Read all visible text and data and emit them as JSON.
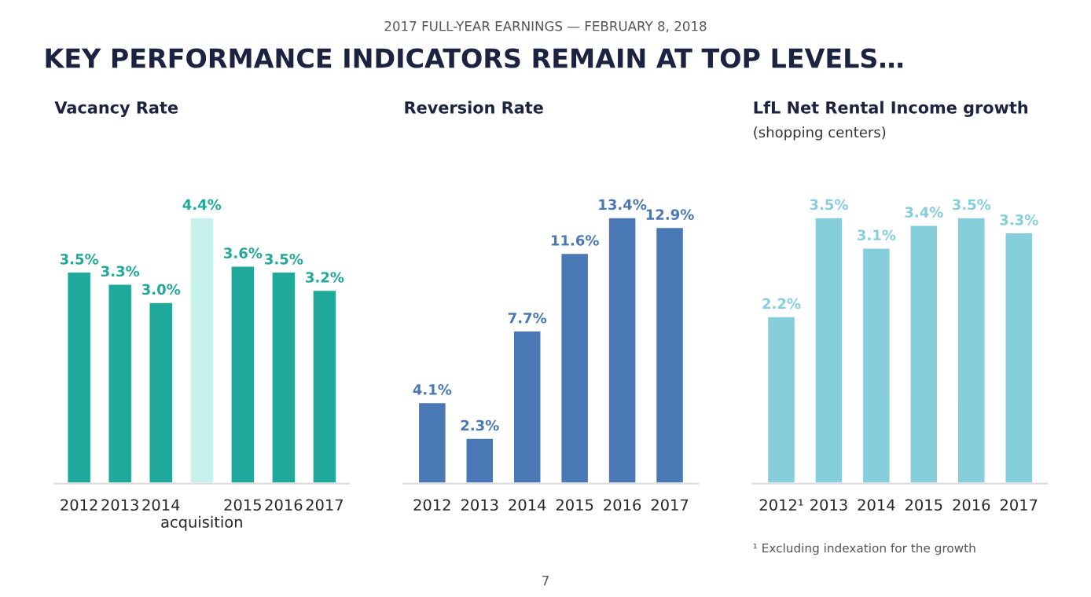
{
  "chart_data": [
    {
      "type": "other",
      "title": "KEY PERFORMANCE INDICATORS REMAIN AT TOP LEVELS…",
      "subtitle": "2017 FULL-YEAR EARNINGS — FEBRUARY 8, 2018",
      "annotations": [
        "7"
      ]
    },
    {
      "type": "bar",
      "title": "Vacancy Rate",
      "categories": [
        "2012",
        "2013",
        "2014",
        "acquisition",
        "2015",
        "2016",
        "2017"
      ],
      "values": [
        3.5,
        3.3,
        3.0,
        4.4,
        3.6,
        3.5,
        3.2
      ],
      "colors": [
        "#1fa99a",
        "#1fa99a",
        "#1fa99a",
        "#c6f1ec",
        "#1fa99a",
        "#1fa99a",
        "#1fa99a"
      ],
      "value_labels": [
        "3.5%",
        "3.3%",
        "3.0%",
        "4.4%",
        "3.6%",
        "3.5%",
        "3.2%"
      ]
    },
    {
      "type": "bar",
      "title": "Reversion Rate",
      "categories": [
        "2012",
        "2013",
        "2014",
        "2015",
        "2016",
        "2017"
      ],
      "values": [
        4.1,
        2.3,
        7.7,
        11.6,
        13.4,
        12.9
      ],
      "color": "#4a78b5",
      "value_labels": [
        "4.1%",
        "2.3%",
        "7.7%",
        "11.6%",
        "13.4%",
        "12.9%"
      ]
    },
    {
      "type": "bar",
      "title": "LfL Net Rental Income growth",
      "subtitle": "(shopping centers)",
      "categories": [
        "2012¹",
        "2013",
        "2014",
        "2015",
        "2016",
        "2017"
      ],
      "values": [
        2.2,
        3.5,
        3.1,
        3.4,
        3.5,
        3.3
      ],
      "color": "#86cedb",
      "value_labels": [
        "2.2%",
        "3.5%",
        "3.1%",
        "3.4%",
        "3.5%",
        "3.3%"
      ],
      "annotations": [
        "¹ Excluding indexation for the growth"
      ]
    }
  ]
}
